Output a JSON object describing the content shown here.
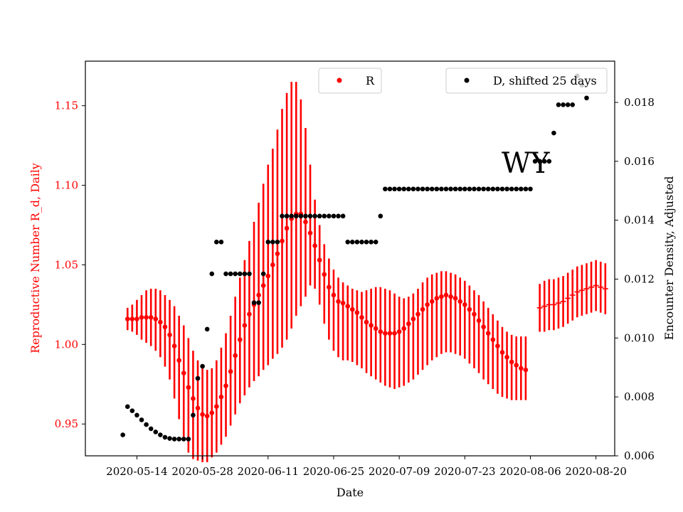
{
  "chart_data": {
    "type": "scatter",
    "title": "",
    "xlabel": "Date",
    "ylabel_left": "Reproductive Number R_d, Daily",
    "ylabel_right": "Encounter Density, Adjusted",
    "annotation": "WY",
    "x_range": [
      "2020-05-03",
      "2020-08-24"
    ],
    "x_ticks": [
      "2020-05-14",
      "2020-05-28",
      "2020-06-11",
      "2020-06-25",
      "2020-07-09",
      "2020-07-23",
      "2020-08-06",
      "2020-08-20"
    ],
    "ylim_left": [
      0.93,
      1.178
    ],
    "yticks_left": [
      "0.95",
      "1.00",
      "1.05",
      "1.10",
      "1.15"
    ],
    "ylim_right": [
      0.006,
      0.0194
    ],
    "yticks_right": [
      "0.006",
      "0.008",
      "0.010",
      "0.012",
      "0.014",
      "0.016",
      "0.018"
    ],
    "grid": false,
    "colors": {
      "R": "#ff0000",
      "D": "#000000",
      "left_axis": "#ff0000",
      "right_axis": "#000000"
    },
    "legend": [
      {
        "label": "R",
        "color": "#ff0000",
        "position": "top-center"
      },
      {
        "label": "D, shifted 25 days",
        "color": "#000000",
        "position": "top-right"
      }
    ],
    "series": [
      {
        "name": "R",
        "axis": "left",
        "marker": "dot",
        "start_date": "2020-05-12",
        "values": [
          1.016,
          1.016,
          1.016,
          1.017,
          1.017,
          1.017,
          1.016,
          1.014,
          1.011,
          1.006,
          0.999,
          0.99,
          0.982,
          0.973,
          0.966,
          0.96,
          0.956,
          0.955,
          0.957,
          0.961,
          0.967,
          0.974,
          0.983,
          0.993,
          1.003,
          1.012,
          1.019,
          1.025,
          1.031,
          1.037,
          1.043,
          1.05,
          1.057,
          1.065,
          1.073,
          1.079,
          1.082,
          1.082,
          1.077,
          1.07,
          1.062,
          1.053,
          1.044,
          1.036,
          1.031,
          1.027,
          1.026,
          1.024,
          1.022,
          1.02,
          1.017,
          1.014,
          1.012,
          1.01,
          1.008,
          1.007,
          1.007,
          1.007,
          1.008,
          1.01,
          1.013,
          1.016,
          1.019,
          1.022,
          1.025,
          1.027,
          1.029,
          1.03,
          1.031,
          1.03,
          1.029,
          1.027,
          1.025,
          1.022,
          1.019,
          1.015,
          1.011,
          1.007,
          1.003,
          0.999,
          0.995,
          0.992,
          0.989,
          0.987,
          0.985,
          0.984
        ],
        "lower": [
          1.009,
          1.008,
          1.006,
          1.003,
          1.001,
          0.999,
          0.996,
          0.992,
          0.986,
          0.978,
          0.966,
          0.953,
          0.942,
          0.932,
          0.928,
          0.927,
          0.926,
          0.926,
          0.929,
          0.932,
          0.937,
          0.942,
          0.949,
          0.956,
          0.963,
          0.968,
          0.973,
          0.977,
          0.98,
          0.984,
          0.987,
          0.991,
          0.994,
          0.998,
          1.003,
          1.01,
          1.018,
          1.024,
          1.03,
          1.037,
          1.035,
          1.025,
          1.013,
          1.003,
          0.996,
          0.992,
          0.99,
          0.99,
          0.989,
          0.987,
          0.985,
          0.982,
          0.98,
          0.978,
          0.976,
          0.974,
          0.973,
          0.972,
          0.973,
          0.974,
          0.976,
          0.978,
          0.981,
          0.984,
          0.987,
          0.99,
          0.992,
          0.994,
          0.995,
          0.995,
          0.994,
          0.993,
          0.991,
          0.988,
          0.985,
          0.982,
          0.978,
          0.975,
          0.972,
          0.969,
          0.967,
          0.966,
          0.965,
          0.965,
          0.965,
          0.965
        ],
        "upper": [
          1.023,
          1.025,
          1.028,
          1.031,
          1.034,
          1.035,
          1.035,
          1.034,
          1.031,
          1.028,
          1.024,
          1.018,
          1.012,
          1.004,
          0.996,
          0.99,
          0.986,
          0.984,
          0.985,
          0.99,
          0.998,
          1.007,
          1.018,
          1.03,
          1.042,
          1.053,
          1.065,
          1.077,
          1.089,
          1.101,
          1.113,
          1.123,
          1.135,
          1.148,
          1.158,
          1.165,
          1.165,
          1.154,
          1.136,
          1.113,
          1.091,
          1.075,
          1.063,
          1.054,
          1.047,
          1.042,
          1.039,
          1.037,
          1.035,
          1.034,
          1.033,
          1.034,
          1.035,
          1.036,
          1.036,
          1.035,
          1.034,
          1.032,
          1.03,
          1.029,
          1.03,
          1.032,
          1.035,
          1.039,
          1.042,
          1.044,
          1.045,
          1.046,
          1.046,
          1.045,
          1.044,
          1.042,
          1.04,
          1.037,
          1.034,
          1.031,
          1.027,
          1.023,
          1.019,
          1.015,
          1.011,
          1.008,
          1.006,
          1.005,
          1.005,
          1.005
        ]
      },
      {
        "name": "R",
        "axis": "left",
        "marker": "tick",
        "start_date": "2020-08-08",
        "values": [
          1.023,
          1.024,
          1.025,
          1.025,
          1.026,
          1.027,
          1.029,
          1.031,
          1.033,
          1.034,
          1.035,
          1.036,
          1.037,
          1.036,
          1.035
        ],
        "lower": [
          1.008,
          1.008,
          1.009,
          1.009,
          1.01,
          1.011,
          1.013,
          1.015,
          1.017,
          1.018,
          1.019,
          1.02,
          1.021,
          1.02,
          1.019
        ],
        "upper": [
          1.038,
          1.04,
          1.041,
          1.041,
          1.042,
          1.043,
          1.045,
          1.047,
          1.049,
          1.05,
          1.051,
          1.052,
          1.053,
          1.052,
          1.051
        ]
      },
      {
        "name": "D, shifted 25 days",
        "axis": "right",
        "marker": "dot",
        "points": [
          [
            "2020-05-11",
            0.00671
          ],
          [
            "2020-05-12",
            0.00767
          ],
          [
            "2020-05-13",
            0.00753
          ],
          [
            "2020-05-14",
            0.00738
          ],
          [
            "2020-05-15",
            0.00722
          ],
          [
            "2020-05-16",
            0.00706
          ],
          [
            "2020-05-17",
            0.00692
          ],
          [
            "2020-05-18",
            0.00681
          ],
          [
            "2020-05-19",
            0.00671
          ],
          [
            "2020-05-20",
            0.00663
          ],
          [
            "2020-05-21",
            0.00659
          ],
          [
            "2020-05-22",
            0.00657
          ],
          [
            "2020-05-23",
            0.00657
          ],
          [
            "2020-05-24",
            0.00657
          ],
          [
            "2020-05-25",
            0.00657
          ],
          [
            "2020-05-26",
            0.00738
          ],
          [
            "2020-05-27",
            0.00863
          ],
          [
            "2020-05-28",
            0.00904
          ],
          [
            "2020-05-29",
            0.0103
          ],
          [
            "2020-05-30",
            0.01218
          ],
          [
            "2020-05-31",
            0.01326
          ],
          [
            "2020-06-01",
            0.01326
          ],
          [
            "2020-06-02",
            0.01218
          ],
          [
            "2020-06-03",
            0.01218
          ],
          [
            "2020-06-04",
            0.01218
          ],
          [
            "2020-06-05",
            0.01218
          ],
          [
            "2020-06-06",
            0.01218
          ],
          [
            "2020-06-07",
            0.01218
          ],
          [
            "2020-06-08",
            0.0112
          ],
          [
            "2020-06-09",
            0.0112
          ],
          [
            "2020-06-10",
            0.01218
          ],
          [
            "2020-06-11",
            0.01326
          ],
          [
            "2020-06-12",
            0.01326
          ],
          [
            "2020-06-13",
            0.01326
          ],
          [
            "2020-06-14",
            0.01414
          ],
          [
            "2020-06-15",
            0.01414
          ],
          [
            "2020-06-16",
            0.01414
          ],
          [
            "2020-06-17",
            0.01414
          ],
          [
            "2020-06-18",
            0.01414
          ],
          [
            "2020-06-19",
            0.01414
          ],
          [
            "2020-06-20",
            0.01414
          ],
          [
            "2020-06-21",
            0.01414
          ],
          [
            "2020-06-22",
            0.01414
          ],
          [
            "2020-06-23",
            0.01414
          ],
          [
            "2020-06-24",
            0.01414
          ],
          [
            "2020-06-25",
            0.01414
          ],
          [
            "2020-06-26",
            0.01414
          ],
          [
            "2020-06-27",
            0.01414
          ],
          [
            "2020-06-28",
            0.01326
          ],
          [
            "2020-06-29",
            0.01326
          ],
          [
            "2020-06-30",
            0.01326
          ],
          [
            "2020-07-01",
            0.01326
          ],
          [
            "2020-07-02",
            0.01326
          ],
          [
            "2020-07-03",
            0.01326
          ],
          [
            "2020-07-04",
            0.01326
          ],
          [
            "2020-07-05",
            0.01414
          ],
          [
            "2020-07-06",
            0.01506
          ],
          [
            "2020-07-07",
            0.01506
          ],
          [
            "2020-07-08",
            0.01506
          ],
          [
            "2020-07-09",
            0.01506
          ],
          [
            "2020-07-10",
            0.01506
          ],
          [
            "2020-07-11",
            0.01506
          ],
          [
            "2020-07-12",
            0.01506
          ],
          [
            "2020-07-13",
            0.01506
          ],
          [
            "2020-07-14",
            0.01506
          ],
          [
            "2020-07-15",
            0.01506
          ],
          [
            "2020-07-16",
            0.01506
          ],
          [
            "2020-07-17",
            0.01506
          ],
          [
            "2020-07-18",
            0.01506
          ],
          [
            "2020-07-19",
            0.01506
          ],
          [
            "2020-07-20",
            0.01506
          ],
          [
            "2020-07-21",
            0.01506
          ],
          [
            "2020-07-22",
            0.01506
          ],
          [
            "2020-07-23",
            0.01506
          ],
          [
            "2020-07-24",
            0.01506
          ],
          [
            "2020-07-25",
            0.01506
          ],
          [
            "2020-07-26",
            0.01506
          ],
          [
            "2020-07-27",
            0.01506
          ],
          [
            "2020-07-28",
            0.01506
          ],
          [
            "2020-07-29",
            0.01506
          ],
          [
            "2020-07-30",
            0.01506
          ],
          [
            "2020-07-31",
            0.01506
          ],
          [
            "2020-08-01",
            0.01506
          ],
          [
            "2020-08-02",
            0.01506
          ],
          [
            "2020-08-03",
            0.01506
          ],
          [
            "2020-08-04",
            0.01506
          ],
          [
            "2020-08-05",
            0.01506
          ],
          [
            "2020-08-06",
            0.01506
          ],
          [
            "2020-08-07",
            0.016
          ],
          [
            "2020-08-08",
            0.016
          ],
          [
            "2020-08-09",
            0.016
          ],
          [
            "2020-08-10",
            0.016
          ],
          [
            "2020-08-11",
            0.01696
          ],
          [
            "2020-08-12",
            0.01792
          ],
          [
            "2020-08-13",
            0.01792
          ],
          [
            "2020-08-14",
            0.01792
          ],
          [
            "2020-08-15",
            0.01792
          ],
          [
            "2020-08-16",
            0.0189
          ],
          [
            "2020-08-17",
            0.01858
          ],
          [
            "2020-08-18",
            0.01815
          ]
        ]
      }
    ]
  }
}
